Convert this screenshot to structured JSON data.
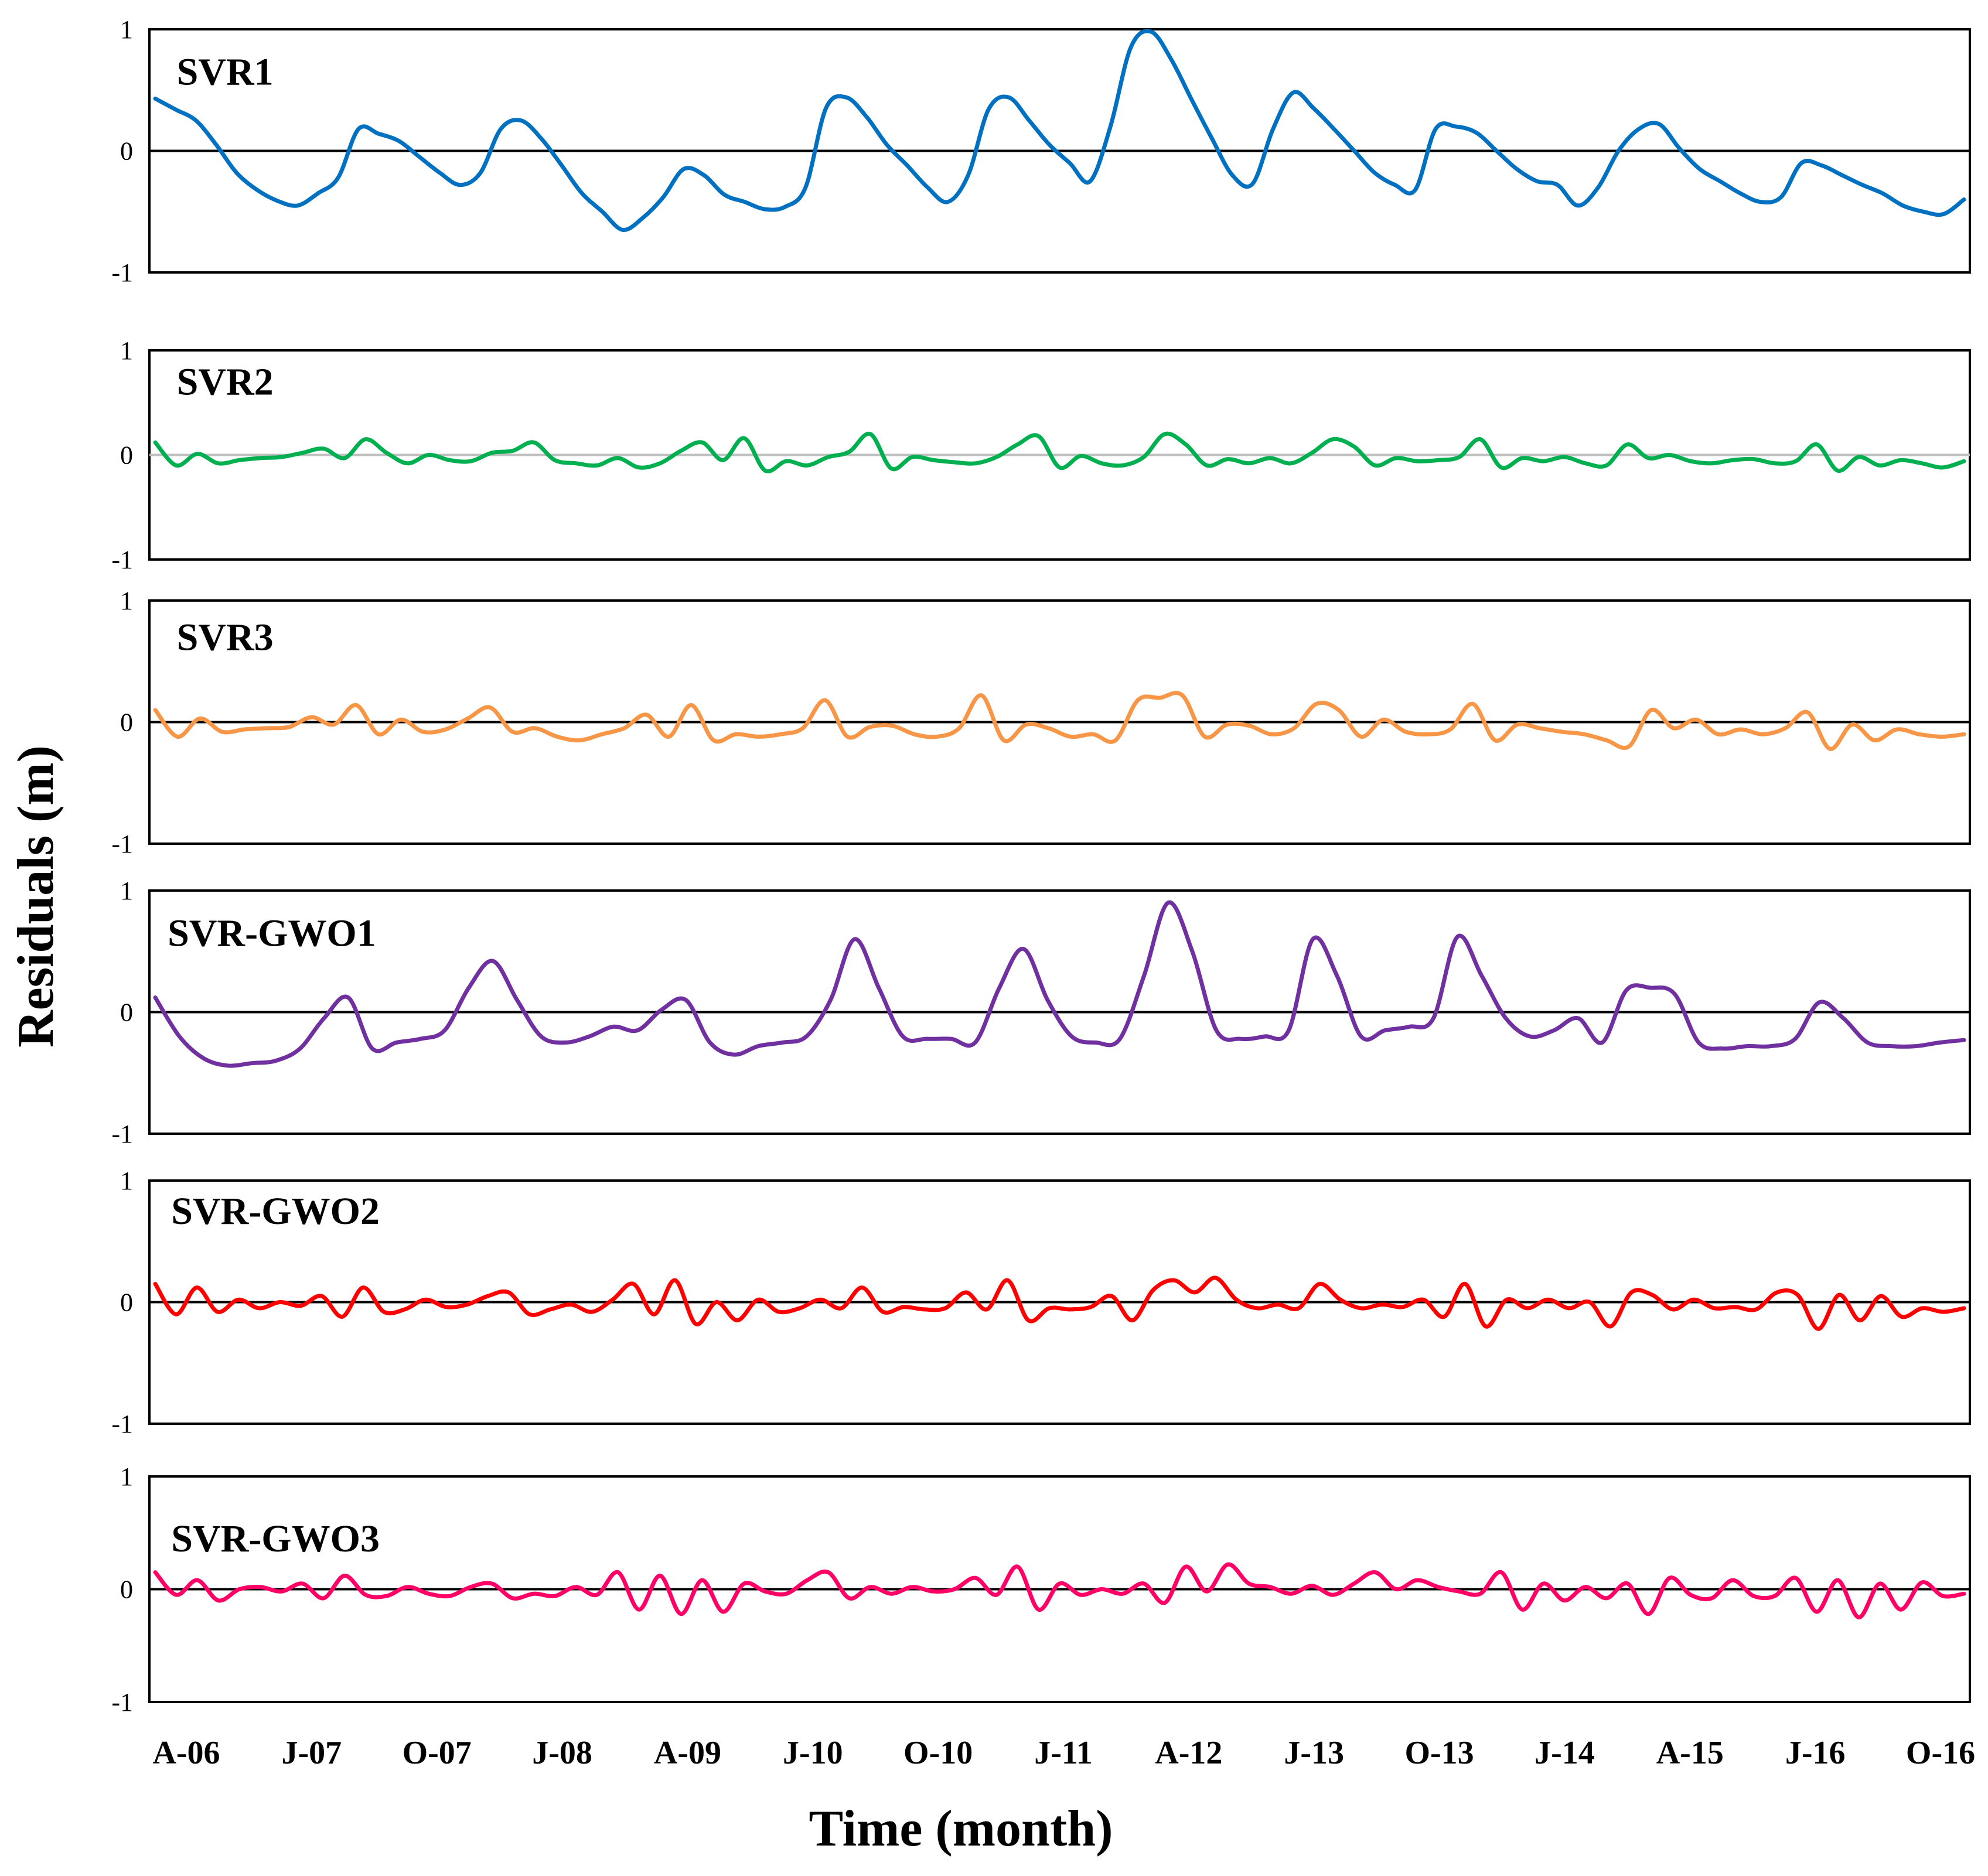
{
  "chart_data": {
    "type": "line",
    "xlabel": "Time (month)",
    "ylabel": "Residuals (m)",
    "x_tick_labels": [
      "A-06",
      "J-07",
      "O-07",
      "J-08",
      "A-09",
      "J-10",
      "O-10",
      "J-11",
      "A-12",
      "J-13",
      "O-13",
      "J-14",
      "A-15",
      "J-16",
      "O-16"
    ],
    "ylim": [
      -1,
      1
    ],
    "y_tick_labels": [
      "1",
      "0",
      "-1"
    ],
    "panels": [
      {
        "name": "SVR1",
        "color": "#0070C0",
        "zero_line_color": "#000000",
        "values": [
          0.43,
          0.34,
          0.25,
          0.05,
          -0.18,
          -0.32,
          -0.41,
          -0.45,
          -0.35,
          -0.22,
          0.18,
          0.14,
          0.08,
          -0.05,
          -0.18,
          -0.28,
          -0.18,
          0.18,
          0.25,
          0.1,
          -0.12,
          -0.35,
          -0.5,
          -0.65,
          -0.55,
          -0.38,
          -0.15,
          -0.2,
          -0.36,
          -0.42,
          -0.48,
          -0.46,
          -0.3,
          0.35,
          0.44,
          0.28,
          0.05,
          -0.12,
          -0.3,
          -0.42,
          -0.2,
          0.34,
          0.44,
          0.25,
          0.05,
          -0.1,
          -0.25,
          0.2,
          0.85,
          0.98,
          0.75,
          0.42,
          0.1,
          -0.2,
          -0.27,
          0.18,
          0.48,
          0.35,
          0.18,
          0.0,
          -0.18,
          -0.28,
          -0.32,
          0.18,
          0.2,
          0.15,
          0.0,
          -0.15,
          -0.25,
          -0.28,
          -0.45,
          -0.3,
          0.0,
          0.18,
          0.22,
          0.02,
          -0.15,
          -0.25,
          -0.35,
          -0.42,
          -0.38,
          -0.1,
          -0.12,
          -0.2,
          -0.28,
          -0.35,
          -0.45,
          -0.5,
          -0.52,
          -0.4
        ],
        "label_x_frac": 0.015,
        "label_y_value": 0.65
      },
      {
        "name": "SVR2",
        "color": "#00B050",
        "zero_line_color": "#C0C0C0",
        "values": [
          0.12,
          -0.1,
          0.01,
          -0.08,
          -0.05,
          -0.03,
          -0.02,
          0.02,
          0.06,
          -0.03,
          0.15,
          0.02,
          -0.08,
          0.0,
          -0.05,
          -0.06,
          0.02,
          0.04,
          0.12,
          -0.05,
          -0.08,
          -0.1,
          -0.03,
          -0.12,
          -0.08,
          0.04,
          0.12,
          -0.05,
          0.16,
          -0.15,
          -0.06,
          -0.1,
          -0.02,
          0.03,
          0.2,
          -0.13,
          -0.02,
          -0.05,
          -0.07,
          -0.08,
          -0.02,
          0.1,
          0.18,
          -0.12,
          -0.01,
          -0.08,
          -0.1,
          -0.02,
          0.2,
          0.1,
          -0.1,
          -0.04,
          -0.08,
          -0.03,
          -0.08,
          0.02,
          0.15,
          0.08,
          -0.1,
          -0.03,
          -0.06,
          -0.05,
          -0.02,
          0.15,
          -0.12,
          -0.03,
          -0.06,
          -0.02,
          -0.08,
          -0.1,
          0.1,
          -0.03,
          0.0,
          -0.06,
          -0.08,
          -0.05,
          -0.04,
          -0.08,
          -0.06,
          0.1,
          -0.15,
          -0.02,
          -0.1,
          -0.05,
          -0.08,
          -0.12,
          -0.06
        ],
        "label_x_frac": 0.015,
        "label_y_value": 0.7
      },
      {
        "name": "SVR3",
        "color": "#F79646",
        "zero_line_color": "#000000",
        "values": [
          0.1,
          -0.12,
          0.03,
          -0.08,
          -0.06,
          -0.05,
          -0.04,
          0.04,
          -0.02,
          0.14,
          -0.1,
          0.02,
          -0.08,
          -0.06,
          0.03,
          0.12,
          -0.08,
          -0.05,
          -0.12,
          -0.15,
          -0.1,
          -0.05,
          0.06,
          -0.12,
          0.14,
          -0.15,
          -0.1,
          -0.12,
          -0.1,
          -0.05,
          0.18,
          -0.12,
          -0.04,
          -0.03,
          -0.1,
          -0.12,
          -0.05,
          0.22,
          -0.15,
          -0.02,
          -0.05,
          -0.12,
          -0.1,
          -0.15,
          0.18,
          0.2,
          0.22,
          -0.12,
          -0.02,
          -0.03,
          -0.1,
          -0.05,
          0.15,
          0.1,
          -0.12,
          0.02,
          -0.08,
          -0.1,
          -0.06,
          0.15,
          -0.15,
          -0.02,
          -0.05,
          -0.08,
          -0.1,
          -0.15,
          -0.2,
          0.1,
          -0.05,
          0.02,
          -0.1,
          -0.06,
          -0.1,
          -0.05,
          0.08,
          -0.22,
          -0.02,
          -0.15,
          -0.06,
          -0.1,
          -0.12,
          -0.1
        ],
        "label_x_frac": 0.015,
        "label_y_value": 0.7
      },
      {
        "name": "SVR-GWO1",
        "color": "#7030A0",
        "zero_line_color": "#000000",
        "values": [
          0.12,
          -0.2,
          -0.38,
          -0.44,
          -0.42,
          -0.4,
          -0.3,
          -0.05,
          0.12,
          -0.3,
          -0.25,
          -0.22,
          -0.15,
          0.2,
          0.42,
          0.1,
          -0.2,
          -0.25,
          -0.2,
          -0.12,
          -0.15,
          0.02,
          0.1,
          -0.25,
          -0.35,
          -0.28,
          -0.25,
          -0.2,
          0.1,
          0.6,
          0.2,
          -0.2,
          -0.22,
          -0.22,
          -0.25,
          0.2,
          0.52,
          0.1,
          -0.2,
          -0.25,
          -0.22,
          0.3,
          0.9,
          0.5,
          -0.15,
          -0.22,
          -0.2,
          -0.15,
          0.6,
          0.3,
          -0.2,
          -0.15,
          -0.12,
          -0.05,
          0.62,
          0.3,
          -0.05,
          -0.2,
          -0.15,
          -0.05,
          -0.25,
          0.18,
          0.2,
          0.15,
          -0.25,
          -0.3,
          -0.28,
          -0.28,
          -0.22,
          0.08,
          -0.05,
          -0.25,
          -0.28,
          -0.28,
          -0.25,
          -0.23
        ],
        "label_x_frac": 0.01,
        "label_y_value": 0.65
      },
      {
        "name": "SVR-GWO2",
        "color": "#FF0000",
        "zero_line_color": "#000000",
        "values": [
          0.15,
          -0.1,
          0.12,
          -0.08,
          0.02,
          -0.05,
          0.0,
          -0.03,
          0.05,
          -0.12,
          0.12,
          -0.08,
          -0.06,
          0.02,
          -0.04,
          -0.02,
          0.05,
          0.08,
          -0.1,
          -0.06,
          -0.02,
          -0.08,
          0.02,
          0.15,
          -0.1,
          0.18,
          -0.18,
          0.0,
          -0.15,
          0.02,
          -0.08,
          -0.05,
          0.02,
          -0.05,
          0.12,
          -0.08,
          -0.04,
          -0.06,
          -0.05,
          0.08,
          -0.06,
          0.18,
          -0.15,
          -0.05,
          -0.06,
          -0.04,
          0.05,
          -0.15,
          0.1,
          0.18,
          0.08,
          0.2,
          0.02,
          -0.05,
          -0.02,
          -0.05,
          0.15,
          0.02,
          -0.05,
          -0.02,
          -0.04,
          0.02,
          -0.12,
          0.15,
          -0.2,
          0.02,
          -0.05,
          0.02,
          -0.05,
          0.0,
          -0.2,
          0.08,
          0.06,
          -0.06,
          0.02,
          -0.05,
          -0.04,
          -0.06,
          0.08,
          0.06,
          -0.22,
          0.06,
          -0.15,
          0.05,
          -0.12,
          -0.05,
          -0.08,
          -0.05
        ],
        "label_x_frac": 0.012,
        "label_y_value": 0.75
      },
      {
        "name": "SVR-GWO3",
        "color": "#FF0066",
        "zero_line_color": "#000000",
        "values": [
          0.15,
          -0.05,
          0.08,
          -0.1,
          0.0,
          0.02,
          -0.02,
          0.05,
          -0.08,
          0.12,
          -0.05,
          -0.06,
          0.02,
          -0.04,
          -0.06,
          0.02,
          0.05,
          -0.08,
          -0.04,
          -0.06,
          0.02,
          -0.05,
          0.15,
          -0.18,
          0.12,
          -0.22,
          0.08,
          -0.2,
          0.05,
          -0.02,
          -0.04,
          0.08,
          0.15,
          -0.08,
          0.02,
          -0.04,
          0.02,
          -0.02,
          0.0,
          0.1,
          -0.05,
          0.2,
          -0.18,
          0.05,
          -0.05,
          0.0,
          -0.04,
          0.05,
          -0.12,
          0.2,
          -0.02,
          0.22,
          0.05,
          0.02,
          -0.04,
          0.03,
          -0.05,
          0.05,
          0.15,
          0.0,
          0.08,
          0.02,
          -0.02,
          -0.04,
          0.15,
          -0.18,
          0.05,
          -0.1,
          0.02,
          -0.08,
          0.05,
          -0.22,
          0.1,
          -0.05,
          -0.08,
          0.08,
          -0.06,
          -0.06,
          0.1,
          -0.2,
          0.08,
          -0.25,
          0.05,
          -0.18,
          0.06,
          -0.06,
          -0.04
        ],
        "label_x_frac": 0.012,
        "label_y_value": 0.45
      }
    ]
  }
}
